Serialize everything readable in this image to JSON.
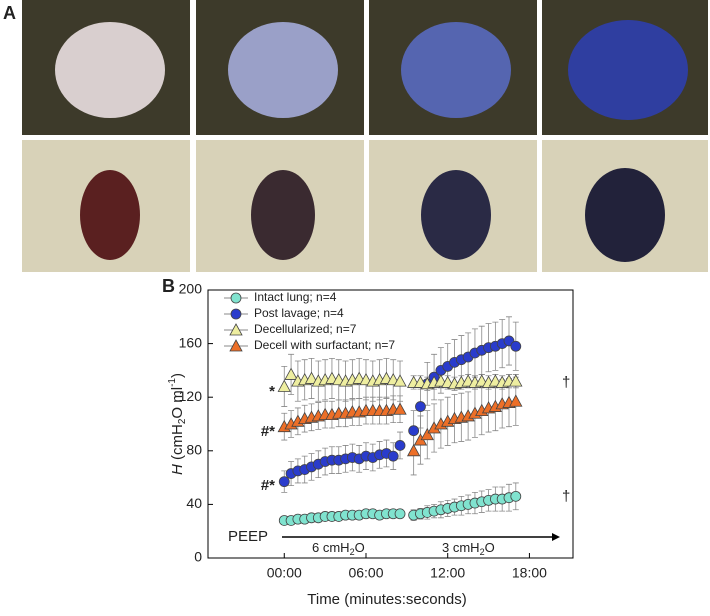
{
  "panel_a_label": "A",
  "chart_data": {
    "type": "scatter",
    "panel_label": "B",
    "x_label": "Time (minutes:seconds)",
    "y_label_parts": [
      "H",
      " (cmH",
      "2",
      "O ml",
      "-1",
      ")"
    ],
    "xlim": [
      -5.6,
      21.2
    ],
    "ylim": [
      0,
      200
    ],
    "xticks": [
      {
        "value": 0,
        "label": "00:00"
      },
      {
        "value": 6,
        "label": "06:00"
      },
      {
        "value": 12,
        "label": "12:00"
      },
      {
        "value": 18,
        "label": "18:00"
      }
    ],
    "yticks": [
      0,
      40,
      80,
      120,
      160,
      200
    ],
    "x": [
      0,
      0.5,
      1,
      1.5,
      2,
      2.5,
      3,
      3.5,
      4,
      4.5,
      5,
      5.5,
      6,
      6.5,
      7,
      7.5,
      8,
      8.5,
      9.5,
      10,
      10.5,
      11,
      11.5,
      12,
      12.5,
      13,
      13.5,
      14,
      14.5,
      15,
      15.5,
      16,
      16.5,
      17
    ],
    "series": [
      {
        "name": "Intact lung; n=4",
        "color": "#80e3cf",
        "marker": "circle",
        "values": [
          28,
          28,
          29,
          29,
          30,
          30,
          31,
          31,
          31,
          32,
          32,
          32,
          33,
          33,
          32,
          33,
          33,
          33,
          32,
          33,
          34,
          35,
          36,
          37,
          38,
          39,
          40,
          41,
          42,
          43,
          44,
          44,
          45,
          46
        ],
        "errors": [
          3,
          3,
          3,
          3,
          3,
          3,
          3,
          3,
          3,
          3,
          3,
          3,
          3,
          3,
          3,
          3,
          3,
          3,
          4,
          4,
          5,
          5,
          6,
          6,
          6,
          7,
          7,
          8,
          8,
          8,
          9,
          9,
          10,
          10
        ]
      },
      {
        "name": "Post lavage; n=4",
        "color": "#2a3ccc",
        "marker": "circle",
        "values": [
          57,
          63,
          65,
          66,
          68,
          70,
          72,
          73,
          73,
          74,
          75,
          74,
          76,
          75,
          77,
          78,
          76,
          84,
          95,
          113,
          130,
          135,
          140,
          143,
          146,
          148,
          150,
          153,
          155,
          157,
          158,
          160,
          162,
          158
        ],
        "errors": [
          8,
          9,
          9,
          10,
          10,
          10,
          10,
          10,
          10,
          10,
          10,
          10,
          10,
          10,
          10,
          10,
          10,
          10,
          15,
          16,
          16,
          17,
          17,
          17,
          17,
          18,
          18,
          18,
          18,
          18,
          18,
          18,
          18,
          18
        ]
      },
      {
        "name": "Decellularized; n=7",
        "color": "#eeeea0",
        "marker": "triangle",
        "values": [
          128,
          137,
          132,
          133,
          134,
          132,
          133,
          134,
          133,
          132,
          133,
          134,
          133,
          132,
          133,
          134,
          133,
          132,
          131,
          131,
          130,
          131,
          132,
          131,
          130,
          131,
          132,
          131,
          132,
          131,
          132,
          131,
          132,
          132
        ],
        "errors": [
          15,
          15,
          15,
          15,
          15,
          15,
          15,
          15,
          15,
          15,
          15,
          15,
          15,
          15,
          15,
          15,
          15,
          15,
          5,
          5,
          5,
          5,
          5,
          5,
          5,
          5,
          5,
          5,
          5,
          5,
          5,
          5,
          5,
          5
        ]
      },
      {
        "name": "Decell with surfactant; n=7",
        "color": "#ec6f28",
        "marker": "triangle",
        "values": [
          98,
          100,
          102,
          104,
          105,
          106,
          107,
          107,
          108,
          108,
          109,
          109,
          110,
          110,
          110,
          110,
          111,
          111,
          80,
          88,
          92,
          97,
          100,
          102,
          104,
          105,
          106,
          108,
          110,
          112,
          113,
          115,
          116,
          117
        ],
        "errors": [
          10,
          10,
          10,
          10,
          10,
          10,
          10,
          10,
          10,
          10,
          10,
          10,
          10,
          10,
          10,
          10,
          10,
          10,
          18,
          18,
          18,
          18,
          18,
          18,
          18,
          18,
          18,
          18,
          18,
          18,
          18,
          18,
          18,
          18
        ]
      }
    ],
    "legend": "upper left",
    "annotations": [
      "*",
      "#*",
      "#*",
      "†",
      "†"
    ],
    "peep_label": "PEEP",
    "peep_1_parts": [
      "6 cmH",
      "2",
      "O"
    ],
    "peep_2_parts": [
      "3 cmH",
      "2",
      "O"
    ]
  }
}
